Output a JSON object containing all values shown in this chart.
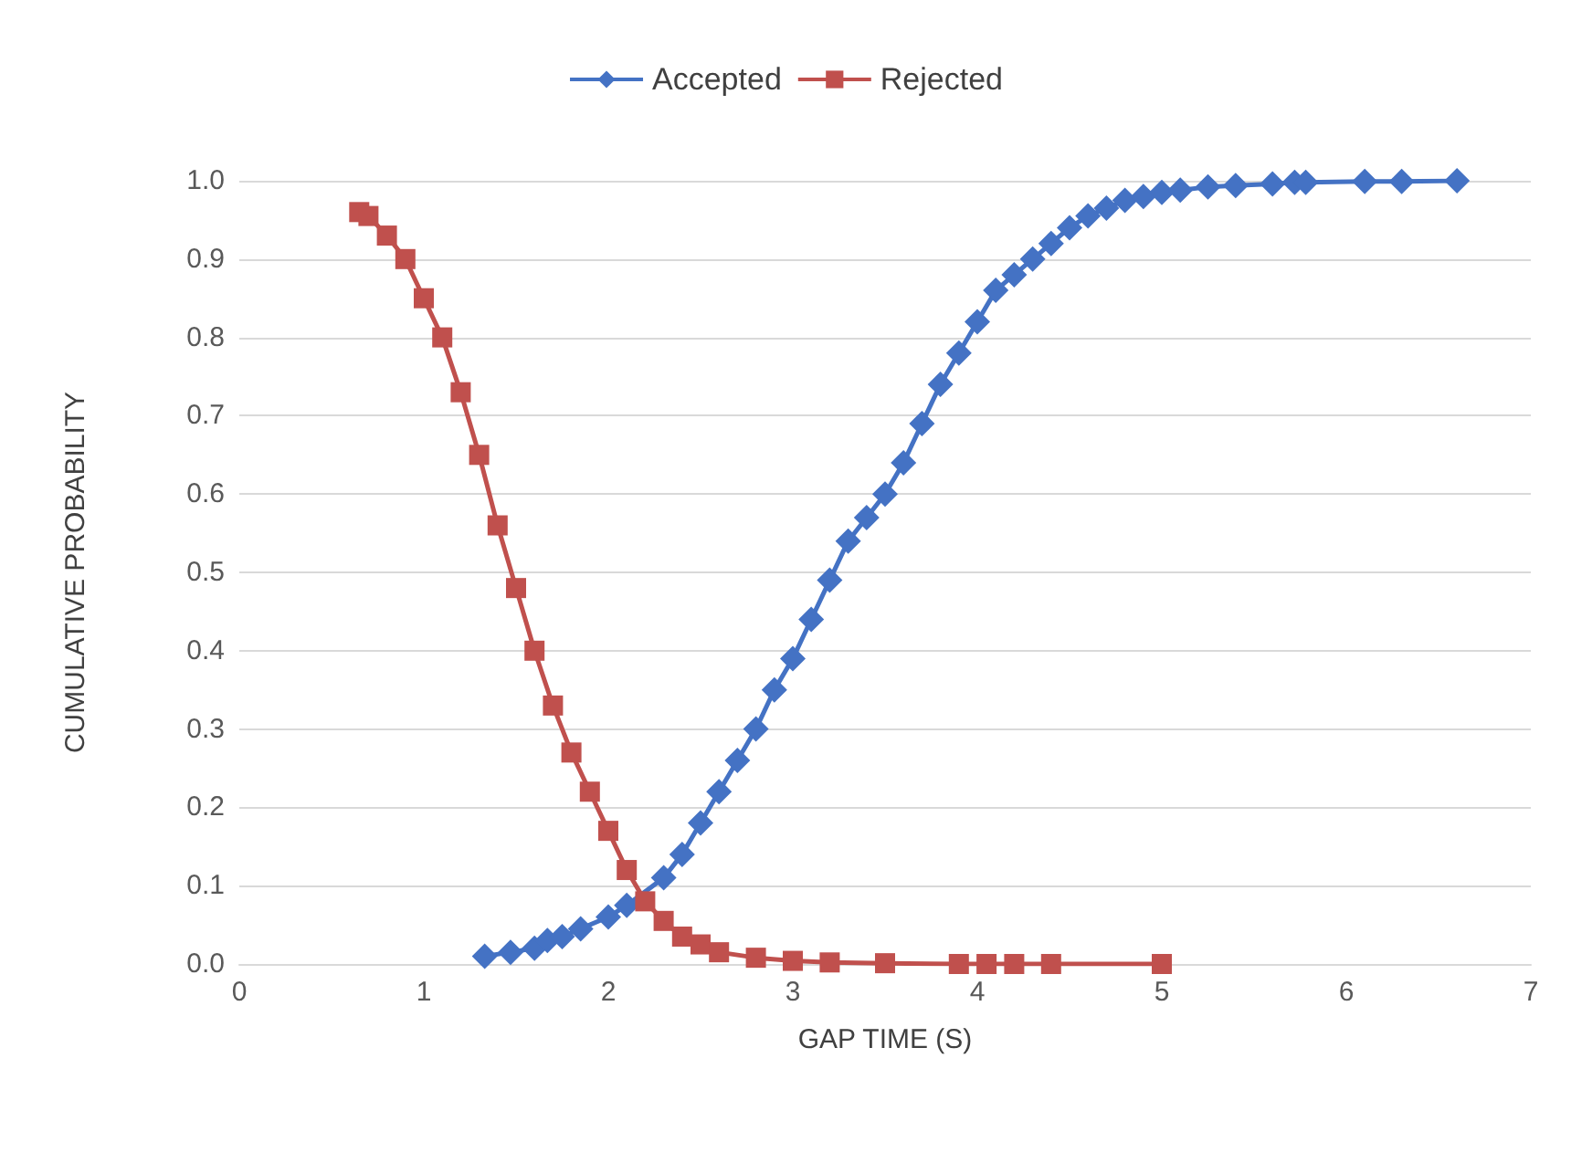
{
  "chart_data": {
    "type": "line",
    "xlabel": "GAP TIME (S)",
    "ylabel": "CUMULATIVE PROBABILITY",
    "xlim": [
      0,
      7
    ],
    "xticks": [
      0,
      1,
      2,
      3,
      4,
      5,
      6,
      7
    ],
    "ylim": [
      0,
      1
    ],
    "yticks": [
      {
        "value": 0,
        "label": "0.0"
      },
      {
        "value": 0.1,
        "label": "0.1"
      },
      {
        "value": 0.2,
        "label": "0.2"
      },
      {
        "value": 0.3,
        "label": "0.3"
      },
      {
        "value": 0.4,
        "label": "0.4"
      },
      {
        "value": 0.5,
        "label": "0.5"
      },
      {
        "value": 0.6,
        "label": "0.6"
      },
      {
        "value": 0.7,
        "label": "0.7"
      },
      {
        "value": 0.8,
        "label": "0.8"
      },
      {
        "value": 0.9,
        "label": "0.9"
      },
      {
        "value": 1,
        "label": "1.0"
      }
    ],
    "grid": "y",
    "legend": "top",
    "series": [
      {
        "name": "Accepted",
        "color": "#4472c4",
        "marker": "diamond",
        "x": [
          1.33,
          1.47,
          1.6,
          1.67,
          1.75,
          1.85,
          2.0,
          2.1,
          2.3,
          2.4,
          2.5,
          2.6,
          2.7,
          2.8,
          2.9,
          3.0,
          3.1,
          3.2,
          3.3,
          3.4,
          3.5,
          3.6,
          3.7,
          3.8,
          3.9,
          4.0,
          4.1,
          4.2,
          4.3,
          4.4,
          4.5,
          4.6,
          4.7,
          4.8,
          4.9,
          5.0,
          5.1,
          5.25,
          5.4,
          5.6,
          5.72,
          5.78,
          6.1,
          6.3,
          6.6
        ],
        "values": [
          0.01,
          0.015,
          0.02,
          0.03,
          0.035,
          0.045,
          0.06,
          0.075,
          0.11,
          0.14,
          0.18,
          0.22,
          0.26,
          0.3,
          0.35,
          0.39,
          0.44,
          0.49,
          0.54,
          0.57,
          0.6,
          0.64,
          0.69,
          0.74,
          0.78,
          0.82,
          0.86,
          0.88,
          0.9,
          0.92,
          0.94,
          0.955,
          0.965,
          0.975,
          0.98,
          0.985,
          0.988,
          0.992,
          0.994,
          0.996,
          0.998,
          0.998,
          0.999,
          0.999,
          1.0
        ]
      },
      {
        "name": "Rejected",
        "color": "#c0504d",
        "marker": "square",
        "x": [
          0.65,
          0.7,
          0.8,
          0.9,
          1.0,
          1.1,
          1.2,
          1.3,
          1.4,
          1.5,
          1.6,
          1.7,
          1.8,
          1.9,
          2.0,
          2.1,
          2.2,
          2.3,
          2.4,
          2.5,
          2.6,
          2.8,
          3.0,
          3.2,
          3.5,
          3.9,
          4.05,
          4.2,
          4.4,
          5.0
        ],
        "values": [
          0.96,
          0.955,
          0.93,
          0.9,
          0.85,
          0.8,
          0.73,
          0.65,
          0.56,
          0.48,
          0.4,
          0.33,
          0.27,
          0.22,
          0.17,
          0.12,
          0.08,
          0.055,
          0.035,
          0.025,
          0.015,
          0.008,
          0.004,
          0.002,
          0.001,
          0,
          0,
          0,
          0,
          0
        ]
      }
    ]
  }
}
